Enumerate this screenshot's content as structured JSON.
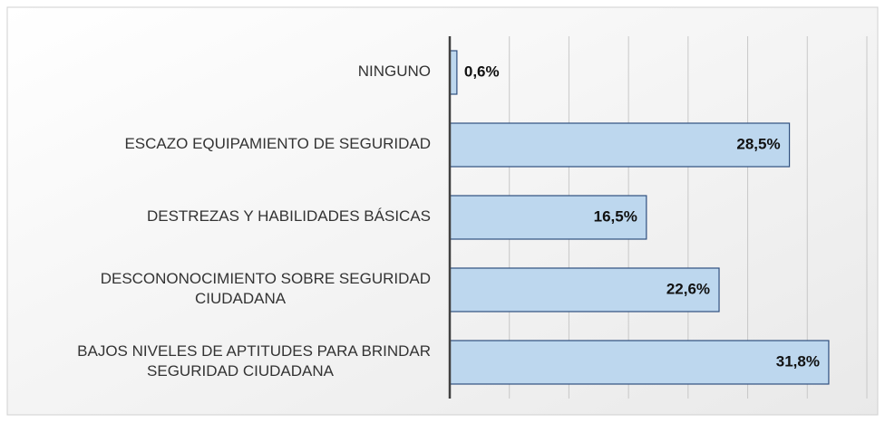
{
  "chart_data": {
    "type": "barh",
    "categories": [
      [
        "NINGUNO"
      ],
      [
        "ESCAZO EQUIPAMIENTO DE SEGURIDAD"
      ],
      [
        "DESTREZAS Y HABILIDADES BÁSICAS"
      ],
      [
        "DESCONONOCIMIENTO SOBRE SEGURIDAD",
        "CIUDADANA"
      ],
      [
        "BAJOS NIVELES DE APTITUDES PARA BRINDAR",
        "SEGURIDAD CIUDADANA"
      ]
    ],
    "values": [
      0.6,
      28.5,
      16.5,
      22.6,
      31.8
    ],
    "value_labels": [
      "0,6%",
      "28,5%",
      "16,5%",
      "22,6%",
      "31,8%"
    ],
    "color": "#bdd7ee",
    "xlim": [
      0,
      35
    ],
    "xticks": [
      0,
      5,
      10,
      15,
      20,
      25,
      30,
      35
    ],
    "grid": true
  }
}
